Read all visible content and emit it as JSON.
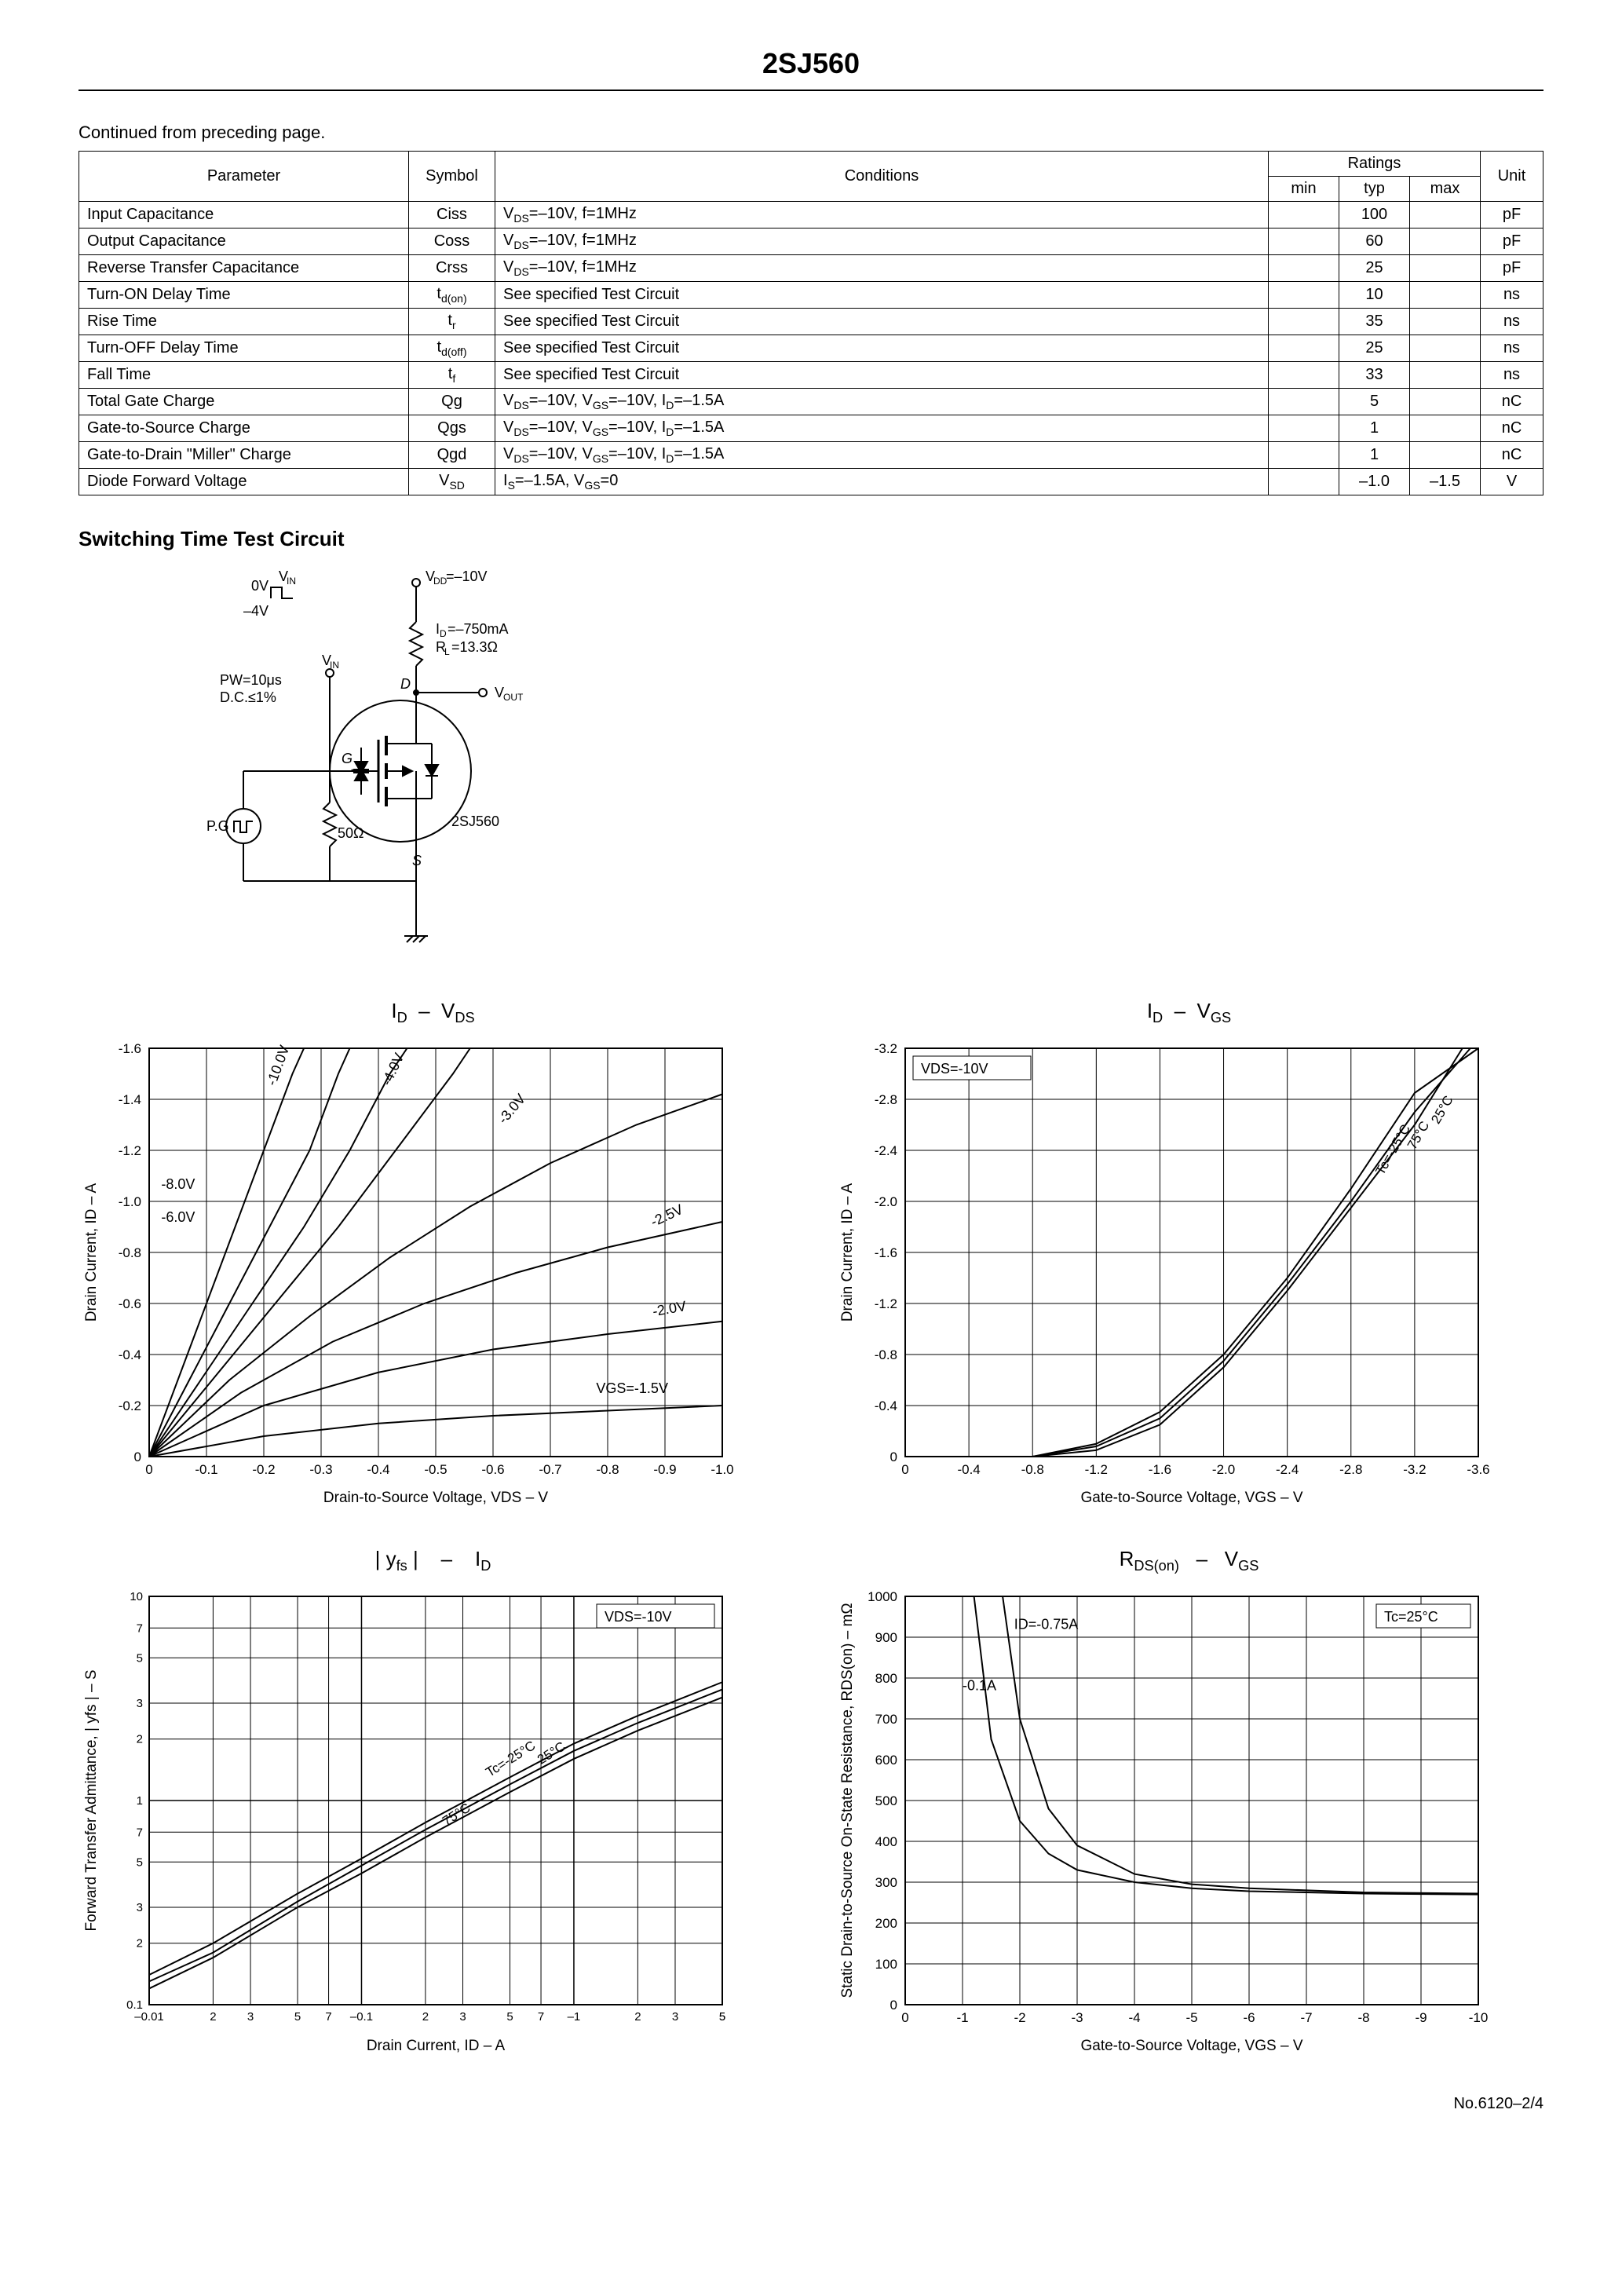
{
  "page": {
    "title": "2SJ560",
    "continued": "Continued from preceding page.",
    "footer": "No.6120–2/4"
  },
  "table": {
    "headers": {
      "parameter": "Parameter",
      "symbol": "Symbol",
      "conditions": "Conditions",
      "ratings": "Ratings",
      "min": "min",
      "typ": "typ",
      "max": "max",
      "unit": "Unit"
    },
    "rows": [
      {
        "param": "Input Capacitance",
        "symbol": "Ciss",
        "cond": "V_DS=–10V, f=1MHz",
        "min": "",
        "typ": "100",
        "max": "",
        "unit": "pF"
      },
      {
        "param": "Output Capacitance",
        "symbol": "Coss",
        "cond": "V_DS=–10V, f=1MHz",
        "min": "",
        "typ": "60",
        "max": "",
        "unit": "pF"
      },
      {
        "param": "Reverse Transfer Capacitance",
        "symbol": "Crss",
        "cond": "V_DS=–10V, f=1MHz",
        "min": "",
        "typ": "25",
        "max": "",
        "unit": "pF"
      },
      {
        "param": "Turn-ON Delay Time",
        "symbol": "t_d(on)",
        "cond": "See specified Test Circuit",
        "min": "",
        "typ": "10",
        "max": "",
        "unit": "ns"
      },
      {
        "param": "Rise Time",
        "symbol": "t_r",
        "cond": "See specified Test Circuit",
        "min": "",
        "typ": "35",
        "max": "",
        "unit": "ns"
      },
      {
        "param": "Turn-OFF Delay Time",
        "symbol": "t_d(off)",
        "cond": "See specified Test Circuit",
        "min": "",
        "typ": "25",
        "max": "",
        "unit": "ns"
      },
      {
        "param": "Fall Time",
        "symbol": "t_f",
        "cond": "See specified Test Circuit",
        "min": "",
        "typ": "33",
        "max": "",
        "unit": "ns"
      },
      {
        "param": "Total Gate Charge",
        "symbol": "Qg",
        "cond": "V_DS=–10V, V_GS=–10V, I_D=–1.5A",
        "min": "",
        "typ": "5",
        "max": "",
        "unit": "nC"
      },
      {
        "param": "Gate-to-Source Charge",
        "symbol": "Qgs",
        "cond": "V_DS=–10V, V_GS=–10V, I_D=–1.5A",
        "min": "",
        "typ": "1",
        "max": "",
        "unit": "nC"
      },
      {
        "param": "Gate-to-Drain \"Miller\" Charge",
        "symbol": "Qgd",
        "cond": "V_DS=–10V, V_GS=–10V, I_D=–1.5A",
        "min": "",
        "typ": "1",
        "max": "",
        "unit": "nC"
      },
      {
        "param": "Diode Forward Voltage",
        "symbol": "V_SD",
        "cond": "I_S=–1.5A, V_GS=0",
        "min": "",
        "typ": "–1.0",
        "max": "–1.5",
        "unit": "V"
      }
    ]
  },
  "circuit": {
    "title": "Switching Time Test Circuit",
    "vdd": "V_DD=–10V",
    "id": "I_D=–750mA",
    "rl": "R_L=13.3Ω",
    "vin_label": "V_IN",
    "vin_top": "0V",
    "vin_bot": "–4V",
    "pw": "PW=10μs",
    "dc": "D.C.≤1%",
    "r50": "50Ω",
    "pg": "P.G",
    "device": "2SJ560",
    "vout": "V_OUT",
    "d": "D",
    "g": "G",
    "s": "S"
  },
  "charts": {
    "id_vds": {
      "type": "line",
      "title": "I_D  –  V_DS",
      "xlabel": "Drain-to-Source Voltage, V_DS  –  V",
      "ylabel": "Drain Current, I_D  –  A",
      "xlim": [
        0,
        -1.0
      ],
      "xtick_step": -0.1,
      "ylim": [
        0,
        -1.6
      ],
      "ytick_step": -0.2,
      "background_color": "#ffffff",
      "grid_color": "#000000",
      "line_color": "#000000",
      "line_width": 2,
      "series_labels": [
        "-10.0V",
        "-8.0V",
        "-6.0V",
        "-4.0V",
        "-3.0V",
        "-2.5V",
        "-2.0V",
        "V_GS=-1.5V"
      ],
      "series": {
        "-10.0V": [
          [
            0,
            0
          ],
          [
            -0.05,
            -0.3
          ],
          [
            -0.1,
            -0.6
          ],
          [
            -0.15,
            -0.9
          ],
          [
            -0.2,
            -1.2
          ],
          [
            -0.25,
            -1.5
          ],
          [
            -0.27,
            -1.6
          ]
        ],
        "-8.0V": [
          [
            0,
            0
          ],
          [
            -0.07,
            -0.3
          ],
          [
            -0.14,
            -0.6
          ],
          [
            -0.21,
            -0.9
          ],
          [
            -0.28,
            -1.2
          ],
          [
            -0.33,
            -1.5
          ],
          [
            -0.35,
            -1.6
          ]
        ],
        "-6.0V": [
          [
            0,
            0
          ],
          [
            -0.09,
            -0.3
          ],
          [
            -0.18,
            -0.6
          ],
          [
            -0.27,
            -0.9
          ],
          [
            -0.35,
            -1.2
          ],
          [
            -0.42,
            -1.5
          ],
          [
            -0.45,
            -1.6
          ]
        ],
        "-4.0V": [
          [
            0,
            0
          ],
          [
            -0.11,
            -0.3
          ],
          [
            -0.22,
            -0.6
          ],
          [
            -0.33,
            -0.9
          ],
          [
            -0.43,
            -1.2
          ],
          [
            -0.53,
            -1.5
          ],
          [
            -0.56,
            -1.6
          ]
        ],
        "-3.0V": [
          [
            0,
            0
          ],
          [
            -0.14,
            -0.3
          ],
          [
            -0.28,
            -0.55
          ],
          [
            -0.42,
            -0.78
          ],
          [
            -0.56,
            -0.98
          ],
          [
            -0.7,
            -1.15
          ],
          [
            -0.85,
            -1.3
          ],
          [
            -1.0,
            -1.42
          ]
        ],
        "-2.5V": [
          [
            0,
            0
          ],
          [
            -0.16,
            -0.25
          ],
          [
            -0.32,
            -0.45
          ],
          [
            -0.48,
            -0.6
          ],
          [
            -0.64,
            -0.72
          ],
          [
            -0.8,
            -0.82
          ],
          [
            -1.0,
            -0.92
          ]
        ],
        "-2.0V": [
          [
            0,
            0
          ],
          [
            -0.2,
            -0.2
          ],
          [
            -0.4,
            -0.33
          ],
          [
            -0.6,
            -0.42
          ],
          [
            -0.8,
            -0.48
          ],
          [
            -1.0,
            -0.53
          ]
        ],
        "-1.5V": [
          [
            0,
            0
          ],
          [
            -0.2,
            -0.08
          ],
          [
            -0.4,
            -0.13
          ],
          [
            -0.6,
            -0.16
          ],
          [
            -0.8,
            -0.18
          ],
          [
            -1.0,
            -0.2
          ]
        ]
      }
    },
    "id_vgs": {
      "type": "line",
      "title": "I_D  –  V_GS",
      "xlabel": "Gate-to-Source Voltage, V_GS  –  V",
      "ylabel": "Drain Current, I_D  –  A",
      "note": "V_DS=-10V",
      "xlim": [
        0,
        -3.6
      ],
      "xtick_step": -0.4,
      "ylim": [
        0,
        -3.2
      ],
      "ytick_step": -0.4,
      "background_color": "#ffffff",
      "grid_color": "#000000",
      "line_color": "#000000",
      "line_width": 2,
      "series_labels": [
        "Tc=-25°C",
        "25°C",
        "75°C"
      ],
      "series": {
        "-25C": [
          [
            -0.8,
            0
          ],
          [
            -1.2,
            -0.05
          ],
          [
            -1.6,
            -0.25
          ],
          [
            -2.0,
            -0.7
          ],
          [
            -2.4,
            -1.3
          ],
          [
            -2.8,
            -1.95
          ],
          [
            -3.2,
            -2.6
          ],
          [
            -3.5,
            -3.2
          ]
        ],
        "25C": [
          [
            -0.8,
            0
          ],
          [
            -1.2,
            -0.08
          ],
          [
            -1.6,
            -0.3
          ],
          [
            -2.0,
            -0.75
          ],
          [
            -2.4,
            -1.35
          ],
          [
            -2.8,
            -2.0
          ],
          [
            -3.2,
            -2.7
          ],
          [
            -3.55,
            -3.2
          ]
        ],
        "75C": [
          [
            -0.8,
            0
          ],
          [
            -1.2,
            -0.1
          ],
          [
            -1.6,
            -0.35
          ],
          [
            -2.0,
            -0.8
          ],
          [
            -2.4,
            -1.4
          ],
          [
            -2.8,
            -2.1
          ],
          [
            -3.2,
            -2.85
          ],
          [
            -3.6,
            -3.2
          ]
        ]
      }
    },
    "yfs_id": {
      "type": "line-loglog",
      "title": "| y_fs |     –     I_D",
      "xlabel": "Drain Current, I_D  –  A",
      "ylabel": "Forward Transfer Admittance, | y_fs |  –  S",
      "note": "V_DS=-10V",
      "xlim": [
        -0.01,
        5
      ],
      "xscale": "log",
      "ylim": [
        0.1,
        10
      ],
      "yscale": "log",
      "xticks": [
        -0.01,
        2,
        3,
        5,
        7,
        -0.1,
        2,
        3,
        5,
        7,
        -1.0,
        2,
        3,
        5
      ],
      "yticks": [
        0.1,
        2,
        3,
        5,
        7,
        1.0,
        2,
        3,
        5,
        7,
        10
      ],
      "background_color": "#ffffff",
      "grid_color": "#000000",
      "line_color": "#000000",
      "line_width": 2,
      "series_labels": [
        "Tc=-25°C",
        "25°C",
        "75°C"
      ],
      "series": {
        "-25C": [
          [
            -0.01,
            0.14
          ],
          [
            -0.02,
            0.2
          ],
          [
            -0.05,
            0.35
          ],
          [
            -0.1,
            0.52
          ],
          [
            -0.2,
            0.78
          ],
          [
            -0.5,
            1.3
          ],
          [
            -1.0,
            1.9
          ],
          [
            -2.0,
            2.6
          ],
          [
            -5.0,
            3.8
          ]
        ],
        "25C": [
          [
            -0.01,
            0.13
          ],
          [
            -0.02,
            0.18
          ],
          [
            -0.05,
            0.32
          ],
          [
            -0.1,
            0.48
          ],
          [
            -0.2,
            0.72
          ],
          [
            -0.5,
            1.2
          ],
          [
            -1.0,
            1.75
          ],
          [
            -2.0,
            2.4
          ],
          [
            -5.0,
            3.5
          ]
        ],
        "75C": [
          [
            -0.01,
            0.12
          ],
          [
            -0.02,
            0.17
          ],
          [
            -0.05,
            0.3
          ],
          [
            -0.1,
            0.44
          ],
          [
            -0.2,
            0.66
          ],
          [
            -0.5,
            1.1
          ],
          [
            -1.0,
            1.6
          ],
          [
            -2.0,
            2.2
          ],
          [
            -5.0,
            3.2
          ]
        ]
      }
    },
    "rdson_vgs": {
      "type": "line",
      "title": "R_DS(on)   –   V_GS",
      "xlabel": "Gate-to-Source Voltage, V_GS  –  V",
      "ylabel": "Static Drain-to-Source\nOn-State Resistance, R_DS(on)  –  mΩ",
      "note": "Tc=25°C",
      "xlim": [
        0,
        -10
      ],
      "xtick_step": -1,
      "ylim": [
        0,
        1000
      ],
      "ytick_step": 100,
      "background_color": "#ffffff",
      "grid_color": "#000000",
      "line_color": "#000000",
      "line_width": 2,
      "series_labels": [
        "I_D=-0.75A",
        "-0.1A"
      ],
      "series": {
        "-0.75A": [
          [
            -1.7,
            1000
          ],
          [
            -2.0,
            700
          ],
          [
            -2.5,
            480
          ],
          [
            -3.0,
            390
          ],
          [
            -4.0,
            320
          ],
          [
            -5.0,
            295
          ],
          [
            -6.0,
            285
          ],
          [
            -8.0,
            275
          ],
          [
            -10.0,
            272
          ]
        ],
        "-0.1A": [
          [
            -1.2,
            1000
          ],
          [
            -1.5,
            650
          ],
          [
            -2.0,
            450
          ],
          [
            -2.5,
            370
          ],
          [
            -3.0,
            330
          ],
          [
            -4.0,
            300
          ],
          [
            -5.0,
            285
          ],
          [
            -6.0,
            278
          ],
          [
            -8.0,
            272
          ],
          [
            -10.0,
            270
          ]
        ]
      }
    }
  }
}
